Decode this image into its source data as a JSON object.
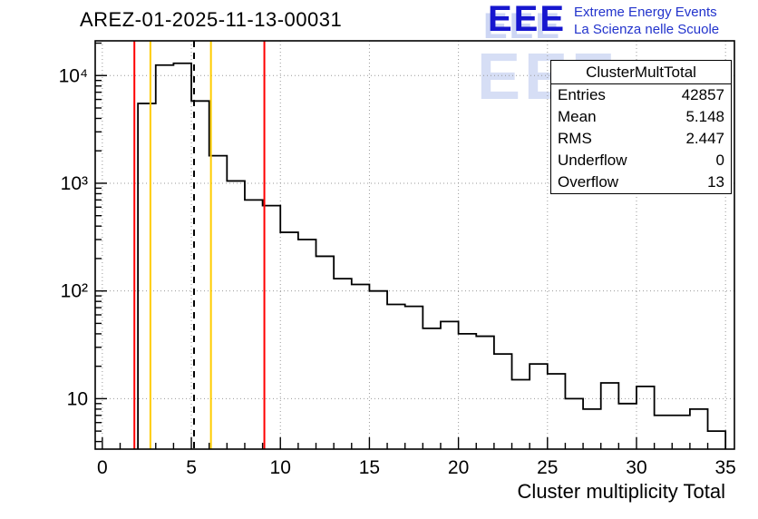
{
  "header": {
    "title": "AREZ-01-2025-11-13-00031",
    "logo": {
      "acronym": "EEE",
      "line1": "Extreme Energy Events",
      "line2": "La Scienza nelle Scuole",
      "color": "#1616cf"
    }
  },
  "stats": {
    "title": "ClusterMultTotal",
    "rows": [
      {
        "label": "Entries",
        "value": "42857"
      },
      {
        "label": "Mean",
        "value": "5.148"
      },
      {
        "label": "RMS",
        "value": "2.447"
      },
      {
        "label": "Underflow",
        "value": "0"
      },
      {
        "label": "Overflow",
        "value": "13"
      }
    ]
  },
  "chart_data": {
    "type": "bar",
    "title": "AREZ-01-2025-11-13-00031",
    "xlabel": "Cluster multiplicity Total",
    "ylabel": "",
    "y_scale": "log",
    "xlim": [
      -0.4,
      35.5
    ],
    "ylim": [
      3.4,
      21000
    ],
    "grid": true,
    "bin_start": 0,
    "bin_width": 1,
    "counts": [
      0,
      0,
      5500,
      12500,
      13000,
      5800,
      1800,
      1050,
      700,
      620,
      350,
      300,
      210,
      130,
      115,
      100,
      75,
      72,
      45,
      52,
      40,
      38,
      26,
      15,
      21,
      17,
      10,
      8,
      14,
      9,
      13,
      7,
      7,
      8,
      5
    ],
    "line_color": "#000000",
    "x_major_ticks": [
      0,
      5,
      10,
      15,
      20,
      25,
      30,
      35
    ],
    "x_tick_labels": [
      "0",
      "5",
      "10",
      "15",
      "20",
      "25",
      "30",
      "35"
    ],
    "y_major_ticks": [
      10,
      100,
      1000,
      10000
    ],
    "y_tick_labels": [
      "10",
      "10²",
      "10³",
      "10⁴"
    ],
    "markers": [
      {
        "name": "red-line-low",
        "x": 1.8,
        "color": "#ff0000",
        "style": "solid"
      },
      {
        "name": "yellow-line-low",
        "x": 2.7,
        "color": "#ffcc00",
        "style": "solid"
      },
      {
        "name": "mean-line",
        "x": 5.15,
        "color": "#000000",
        "style": "dashed"
      },
      {
        "name": "yellow-line-high",
        "x": 6.1,
        "color": "#ffcc00",
        "style": "solid"
      },
      {
        "name": "red-line-high",
        "x": 9.1,
        "color": "#ff0000",
        "style": "solid"
      }
    ]
  }
}
